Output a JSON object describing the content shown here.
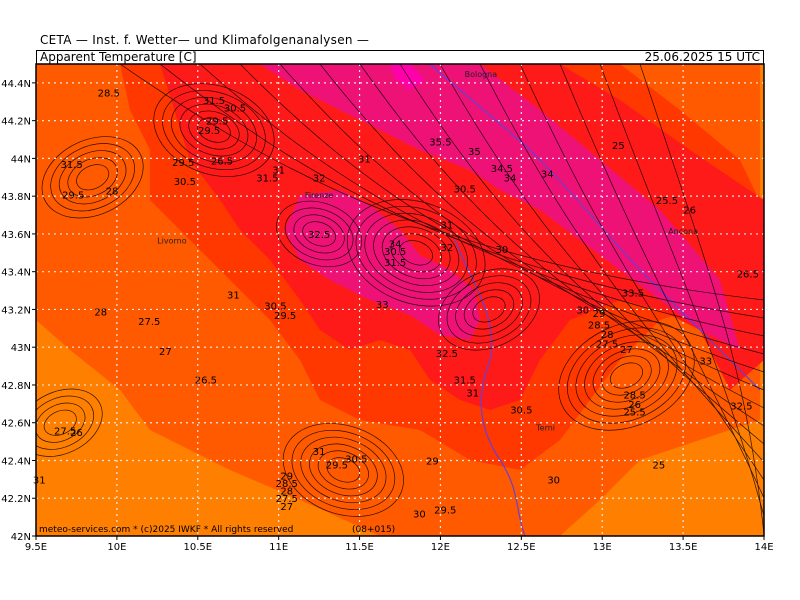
{
  "header": {
    "source": "CETA — Inst. f. Wetter— und Klimafolgenanalysen —",
    "parameter": "Apparent Temperature [C]",
    "valid_time": "25.06.2025 15 UTC"
  },
  "map": {
    "lon_range": [
      9.5,
      14.0
    ],
    "lat_range": [
      42.0,
      44.5
    ],
    "lon_ticks": [
      "9.5E",
      "10E",
      "10.5E",
      "11E",
      "11.5E",
      "12E",
      "12.5E",
      "13E",
      "13.5E",
      "14E"
    ],
    "lat_ticks": [
      "42N",
      "42.2N",
      "42.4N",
      "42.6N",
      "42.8N",
      "43N",
      "43.2N",
      "43.4N",
      "43.6N",
      "43.8N",
      "44N",
      "44.2N",
      "44.4N"
    ],
    "colors": {
      "below_25": "#ff8000",
      "25_to_30": "#ff5a00",
      "30_to_32": "#ff3800",
      "32_to_34": "#ff1a1a",
      "34_to_36": "#ee1277",
      "above_36": "#ff00aa",
      "coast": "#6a3fd0"
    },
    "cities": [
      {
        "name": "Bologna",
        "lon": 12.25,
        "lat": 44.43
      },
      {
        "name": "Firenze",
        "lon": 11.25,
        "lat": 43.79
      },
      {
        "name": "Livorno",
        "lon": 10.34,
        "lat": 43.55
      },
      {
        "name": "Ancona",
        "lon": 13.5,
        "lat": 43.6
      },
      {
        "name": "Terni",
        "lon": 12.65,
        "lat": 42.56
      }
    ],
    "contour_labels": [
      {
        "t": "28.5",
        "lon": 9.95,
        "lat": 44.35
      },
      {
        "t": "31.5",
        "lon": 10.6,
        "lat": 44.31
      },
      {
        "t": "30.5",
        "lon": 10.73,
        "lat": 44.27
      },
      {
        "t": "29.5",
        "lon": 10.62,
        "lat": 44.2
      },
      {
        "t": "29.5",
        "lon": 10.57,
        "lat": 44.15
      },
      {
        "t": "35.5",
        "lon": 12.0,
        "lat": 44.09
      },
      {
        "t": "35",
        "lon": 12.21,
        "lat": 44.04
      },
      {
        "t": "25",
        "lon": 13.1,
        "lat": 44.07
      },
      {
        "t": "31.5",
        "lon": 9.72,
        "lat": 43.97
      },
      {
        "t": "29.5",
        "lon": 10.41,
        "lat": 43.98
      },
      {
        "t": "26.5",
        "lon": 10.65,
        "lat": 43.99
      },
      {
        "t": "31",
        "lon": 11.53,
        "lat": 44.0
      },
      {
        "t": "34.5",
        "lon": 12.38,
        "lat": 43.95
      },
      {
        "t": "34",
        "lon": 12.43,
        "lat": 43.9
      },
      {
        "t": "34",
        "lon": 12.66,
        "lat": 43.92
      },
      {
        "t": "30.5",
        "lon": 10.42,
        "lat": 43.88
      },
      {
        "t": "31",
        "lon": 11.0,
        "lat": 43.94
      },
      {
        "t": "31.5",
        "lon": 10.93,
        "lat": 43.9
      },
      {
        "t": "32",
        "lon": 11.25,
        "lat": 43.9
      },
      {
        "t": "28",
        "lon": 9.97,
        "lat": 43.83
      },
      {
        "t": "29.5",
        "lon": 9.73,
        "lat": 43.81
      },
      {
        "t": "30.5",
        "lon": 12.15,
        "lat": 43.84
      },
      {
        "t": "25.5",
        "lon": 13.4,
        "lat": 43.78
      },
      {
        "t": "26",
        "lon": 13.54,
        "lat": 43.73
      },
      {
        "t": "31",
        "lon": 12.04,
        "lat": 43.65
      },
      {
        "t": "32.5",
        "lon": 11.25,
        "lat": 43.6
      },
      {
        "t": "34",
        "lon": 11.72,
        "lat": 43.55
      },
      {
        "t": "30.5",
        "lon": 11.72,
        "lat": 43.51
      },
      {
        "t": "32",
        "lon": 12.04,
        "lat": 43.53
      },
      {
        "t": "30",
        "lon": 12.38,
        "lat": 43.52
      },
      {
        "t": "31.5",
        "lon": 11.72,
        "lat": 43.45
      },
      {
        "t": "26.5",
        "lon": 13.9,
        "lat": 43.39
      },
      {
        "t": "31",
        "lon": 10.72,
        "lat": 43.28
      },
      {
        "t": "33.5",
        "lon": 13.19,
        "lat": 43.29
      },
      {
        "t": "30.5",
        "lon": 10.98,
        "lat": 43.22
      },
      {
        "t": "29.5",
        "lon": 11.04,
        "lat": 43.17
      },
      {
        "t": "33",
        "lon": 11.64,
        "lat": 43.23
      },
      {
        "t": "30",
        "lon": 12.88,
        "lat": 43.2
      },
      {
        "t": "28",
        "lon": 9.9,
        "lat": 43.19
      },
      {
        "t": "27.5",
        "lon": 10.2,
        "lat": 43.14
      },
      {
        "t": "29",
        "lon": 12.98,
        "lat": 43.18
      },
      {
        "t": "28.5",
        "lon": 12.98,
        "lat": 43.12
      },
      {
        "t": "28",
        "lon": 13.03,
        "lat": 43.07
      },
      {
        "t": "27.5",
        "lon": 13.03,
        "lat": 43.02
      },
      {
        "t": "27",
        "lon": 10.3,
        "lat": 42.98
      },
      {
        "t": "32.5",
        "lon": 12.04,
        "lat": 42.97
      },
      {
        "t": "27",
        "lon": 13.15,
        "lat": 42.99
      },
      {
        "t": "33",
        "lon": 13.64,
        "lat": 42.93
      },
      {
        "t": "26.5",
        "lon": 10.55,
        "lat": 42.83
      },
      {
        "t": "31.5",
        "lon": 12.15,
        "lat": 42.83
      },
      {
        "t": "31",
        "lon": 12.2,
        "lat": 42.76
      },
      {
        "t": "28.5",
        "lon": 13.2,
        "lat": 42.75
      },
      {
        "t": "26",
        "lon": 13.2,
        "lat": 42.7
      },
      {
        "t": "25.5",
        "lon": 13.2,
        "lat": 42.66
      },
      {
        "t": "32.5",
        "lon": 13.86,
        "lat": 42.69
      },
      {
        "t": "30.5",
        "lon": 12.5,
        "lat": 42.67
      },
      {
        "t": "27.5",
        "lon": 9.68,
        "lat": 42.56
      },
      {
        "t": "26",
        "lon": 9.75,
        "lat": 42.55
      },
      {
        "t": "31",
        "lon": 11.25,
        "lat": 42.45
      },
      {
        "t": "30.5",
        "lon": 11.48,
        "lat": 42.41
      },
      {
        "t": "29.5",
        "lon": 11.36,
        "lat": 42.38
      },
      {
        "t": "29",
        "lon": 11.95,
        "lat": 42.4
      },
      {
        "t": "25",
        "lon": 13.35,
        "lat": 42.38
      },
      {
        "t": "29",
        "lon": 11.05,
        "lat": 42.32
      },
      {
        "t": "28.5",
        "lon": 11.05,
        "lat": 42.28
      },
      {
        "t": "28",
        "lon": 11.05,
        "lat": 42.24
      },
      {
        "t": "27.5",
        "lon": 11.05,
        "lat": 42.2
      },
      {
        "t": "27",
        "lon": 11.05,
        "lat": 42.16
      },
      {
        "t": "31",
        "lon": 9.52,
        "lat": 42.3
      },
      {
        "t": "30",
        "lon": 12.7,
        "lat": 42.3
      },
      {
        "t": "29.5",
        "lon": 12.03,
        "lat": 42.14
      },
      {
        "t": "30",
        "lon": 11.87,
        "lat": 42.12
      }
    ],
    "footer": "meteo-services.com * (c)2025 IWKF * All rights reserved",
    "footer_code": "(08+015)"
  }
}
